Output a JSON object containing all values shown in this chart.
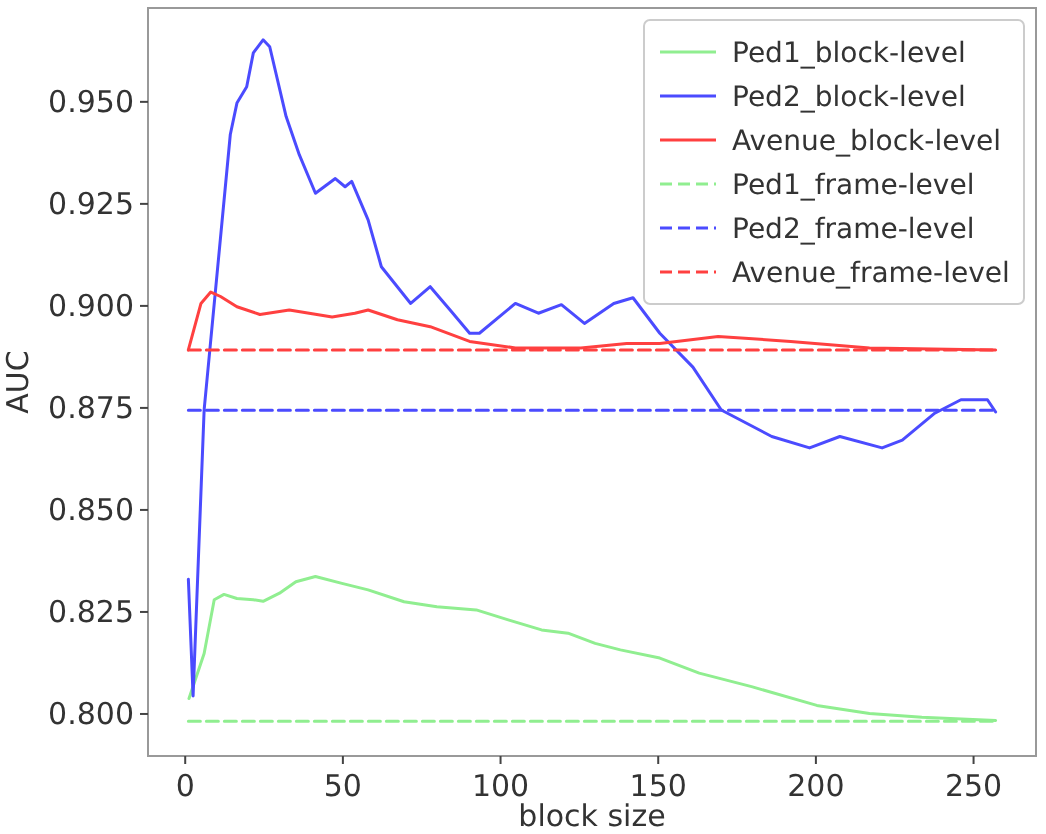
{
  "chart_data": {
    "type": "line",
    "xlabel": "block size",
    "ylabel": "AUC",
    "xlim": [
      -11.8,
      269.8
    ],
    "ylim": [
      0.7897,
      0.973
    ],
    "xticks": [
      0,
      50,
      100,
      150,
      200,
      250
    ],
    "yticks": [
      {
        "value": 0.8,
        "label": "0.800"
      },
      {
        "value": 0.825,
        "label": "0.825"
      },
      {
        "value": 0.85,
        "label": "0.850"
      },
      {
        "value": 0.875,
        "label": "0.875"
      },
      {
        "value": 0.9,
        "label": "0.900"
      },
      {
        "value": 0.925,
        "label": "0.925"
      },
      {
        "value": 0.95,
        "label": "0.950"
      }
    ],
    "grid": false,
    "legend": "top right",
    "marker": "none",
    "series": [
      {
        "name": "Ped1_block-level",
        "color": "#90ee90",
        "line_style": "solid",
        "x": [
          1.2,
          6,
          9.2,
          12.3,
          16.4,
          21.6,
          24.7,
          29.9,
          35.1,
          41.3,
          49.7,
          58,
          69.4,
          79.8,
          92.3,
          102.7,
          113,
          121.4,
          130,
          138,
          150.5,
          163,
          179.6,
          200.3,
          217,
          233.6,
          257
        ],
        "values": [
          0.8038,
          0.8148,
          0.828,
          0.8293,
          0.8283,
          0.828,
          0.8276,
          0.8296,
          0.8324,
          0.8337,
          0.832,
          0.8304,
          0.8275,
          0.8263,
          0.8255,
          0.823,
          0.8206,
          0.8198,
          0.8173,
          0.8157,
          0.8137,
          0.81,
          0.8067,
          0.8021,
          0.8001,
          0.7992,
          0.7984
        ]
      },
      {
        "name": "Ped2_block-level",
        "color": "#4b4bff",
        "line_style": "solid",
        "x": [
          1,
          2.5,
          6,
          14.3,
          16.4,
          19.5,
          21.6,
          24.7,
          26.8,
          32,
          36.2,
          41.3,
          47.6,
          50.7,
          52.8,
          58,
          62.2,
          71.5,
          77.7,
          84,
          90.2,
          93.3,
          104.7,
          112,
          119.3,
          126.6,
          135.9,
          142,
          150.5,
          161,
          170,
          186,
          198,
          207.6,
          221,
          227.4,
          237.7,
          246,
          254.4,
          257
        ],
        "values": [
          0.833,
          0.8044,
          0.8745,
          0.942,
          0.9497,
          0.9537,
          0.962,
          0.9652,
          0.9635,
          0.9464,
          0.937,
          0.9276,
          0.9312,
          0.9292,
          0.9305,
          0.9211,
          0.9096,
          0.9006,
          0.9047,
          0.899,
          0.8933,
          0.8933,
          0.9006,
          0.8982,
          0.9003,
          0.8957,
          0.9006,
          0.902,
          0.8933,
          0.885,
          0.8745,
          0.868,
          0.8652,
          0.868,
          0.8652,
          0.8671,
          0.8737,
          0.877,
          0.877,
          0.874
        ]
      },
      {
        "name": "Avenue_block-level",
        "color": "#ff4040",
        "line_style": "solid",
        "x": [
          1,
          5,
          8.1,
          11.2,
          16.4,
          23.7,
          33,
          46.6,
          53.8,
          58,
          67.3,
          77.7,
          90.2,
          104.7,
          125.5,
          140,
          150.5,
          169,
          192,
          217,
          257
        ],
        "values": [
          0.8892,
          0.9006,
          0.9034,
          0.9023,
          0.8998,
          0.8979,
          0.899,
          0.8973,
          0.8982,
          0.899,
          0.8966,
          0.8949,
          0.8913,
          0.8897,
          0.8897,
          0.8908,
          0.8908,
          0.8925,
          0.8913,
          0.8897,
          0.8892
        ]
      },
      {
        "name": "Ped1_frame-level",
        "color": "#90ee90",
        "line_style": "dashed",
        "x": [
          1,
          257
        ],
        "values": [
          0.7982,
          0.7982
        ]
      },
      {
        "name": "Ped2_frame-level",
        "color": "#4b4bff",
        "line_style": "dashed",
        "x": [
          1,
          257
        ],
        "values": [
          0.8744,
          0.8744
        ]
      },
      {
        "name": "Avenue_frame-level",
        "color": "#ff4040",
        "line_style": "dashed",
        "x": [
          1,
          257
        ],
        "values": [
          0.8892,
          0.8892
        ]
      }
    ]
  }
}
